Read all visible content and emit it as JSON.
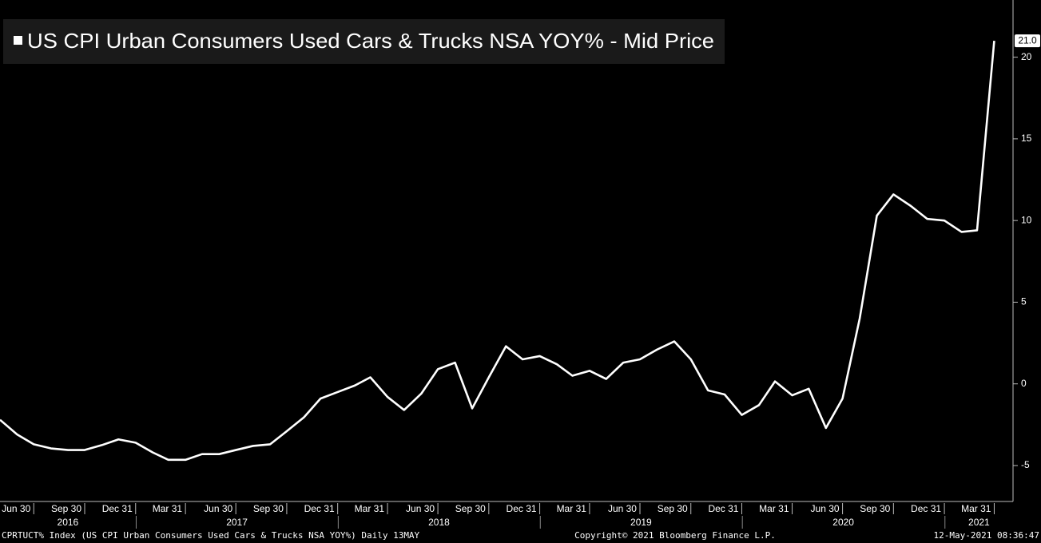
{
  "chart_data": {
    "type": "line",
    "title": "US CPI Urban Consumers Used Cars & Trucks NSA YOY% - Mid Price",
    "x": [
      "2016-04-30",
      "2016-05-31",
      "2016-06-30",
      "2016-07-31",
      "2016-08-31",
      "2016-09-30",
      "2016-10-31",
      "2016-11-30",
      "2016-12-31",
      "2017-01-31",
      "2017-02-28",
      "2017-03-31",
      "2017-04-30",
      "2017-05-31",
      "2017-06-30",
      "2017-07-31",
      "2017-08-31",
      "2017-09-30",
      "2017-10-31",
      "2017-11-30",
      "2017-12-31",
      "2018-01-31",
      "2018-02-28",
      "2018-03-31",
      "2018-04-30",
      "2018-05-31",
      "2018-06-30",
      "2018-07-31",
      "2018-08-31",
      "2018-09-30",
      "2018-10-31",
      "2018-11-30",
      "2018-12-31",
      "2019-01-31",
      "2019-02-28",
      "2019-03-31",
      "2019-04-30",
      "2019-05-31",
      "2019-06-30",
      "2019-07-31",
      "2019-08-31",
      "2019-09-30",
      "2019-10-31",
      "2019-11-30",
      "2019-12-31",
      "2020-01-31",
      "2020-02-29",
      "2020-03-31",
      "2020-04-30",
      "2020-05-31",
      "2020-06-30",
      "2020-07-31",
      "2020-08-31",
      "2020-09-30",
      "2020-10-31",
      "2020-11-30",
      "2020-12-31",
      "2021-01-31",
      "2021-02-28",
      "2021-03-31"
    ],
    "series": [
      {
        "name": "US CPI Urban Consumers Used Cars & Trucks NSA YOY% - Mid Price",
        "color": "#ffffff",
        "values": [
          -2.2,
          -3.1,
          -3.7,
          -3.95,
          -4.05,
          -4.05,
          -3.75,
          -3.4,
          -3.6,
          -4.2,
          -4.65,
          -4.65,
          -4.3,
          -4.3,
          -4.05,
          -3.8,
          -3.7,
          -2.9,
          -2.05,
          -0.9,
          -0.5,
          -0.1,
          0.4,
          -0.8,
          -1.6,
          -0.6,
          0.9,
          1.3,
          -1.5,
          0.4,
          2.3,
          1.5,
          1.7,
          1.2,
          0.5,
          0.8,
          0.3,
          1.3,
          1.5,
          2.1,
          2.6,
          1.5,
          -0.4,
          -0.65,
          -1.9,
          -1.3,
          0.15,
          -0.7,
          -0.3,
          -2.7,
          -0.9,
          4.0,
          10.3,
          11.6,
          10.9,
          10.1,
          10.0,
          9.3,
          9.4,
          21.0
        ]
      }
    ],
    "last_value_label": "21.0",
    "xlim": [
      "2016-04-30",
      "2021-05-04"
    ],
    "xticks": [
      {
        "value": "2016-06-30",
        "label": "Jun 30"
      },
      {
        "value": "2016-09-30",
        "label": "Sep 30"
      },
      {
        "value": "2016-12-31",
        "label": "Dec 31"
      },
      {
        "value": "2017-03-31",
        "label": "Mar 31"
      },
      {
        "value": "2017-06-30",
        "label": "Jun 30"
      },
      {
        "value": "2017-09-30",
        "label": "Sep 30"
      },
      {
        "value": "2017-12-31",
        "label": "Dec 31"
      },
      {
        "value": "2018-03-31",
        "label": "Mar 31"
      },
      {
        "value": "2018-06-30",
        "label": "Jun 30"
      },
      {
        "value": "2018-09-30",
        "label": "Sep 30"
      },
      {
        "value": "2018-12-31",
        "label": "Dec 31"
      },
      {
        "value": "2019-03-31",
        "label": "Mar 31"
      },
      {
        "value": "2019-06-30",
        "label": "Jun 30"
      },
      {
        "value": "2019-09-30",
        "label": "Sep 30"
      },
      {
        "value": "2019-12-31",
        "label": "Dec 31"
      },
      {
        "value": "2020-03-31",
        "label": "Mar 31"
      },
      {
        "value": "2020-06-30",
        "label": "Jun 30"
      },
      {
        "value": "2020-09-30",
        "label": "Sep 30"
      },
      {
        "value": "2020-12-31",
        "label": "Dec 31"
      },
      {
        "value": "2021-03-31",
        "label": "Mar 31"
      }
    ],
    "year_labels": [
      "2016",
      "2017",
      "2018",
      "2019",
      "2020",
      "2021"
    ],
    "ylim": [
      -7.2,
      23.5
    ],
    "yticks": [
      -5,
      0,
      5,
      10,
      15,
      20
    ],
    "footer": {
      "left": "CPRTUCT% Index (US CPI Urban Consumers Used Cars & Trucks NSA YOY%)  Daily 13MAY",
      "center": "Copyright© 2021 Bloomberg Finance L.P.",
      "right": "12-May-2021 08:36:47"
    }
  }
}
